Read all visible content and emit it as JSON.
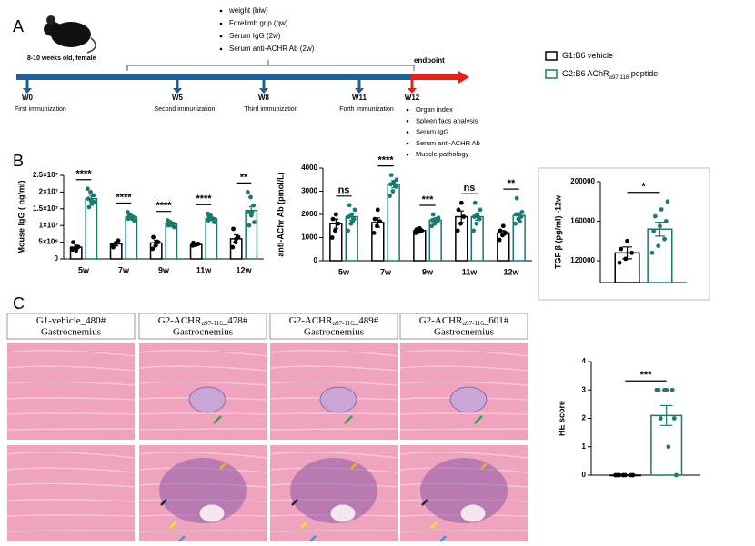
{
  "panel_labels": [
    "A",
    "B",
    "C"
  ],
  "timeline": {
    "mouse_caption": "8-10 weeks old, female",
    "measurements": [
      "weight (biw)",
      "Forelimb grip (qw)",
      "Serum IgG (2w)",
      "Serum anti-ACHR Ab (2w)"
    ],
    "endpoint": "endpoint",
    "timepoints": [
      {
        "label": "W0",
        "event": "First immunization"
      },
      {
        "label": "W5",
        "event": "Second immunization"
      },
      {
        "label": "W8",
        "event": "Third immunization"
      },
      {
        "label": "W11",
        "event": "Forth immunization"
      },
      {
        "label": "W12"
      }
    ],
    "endpoint_items": [
      "Organ index",
      "Spleen facs analysis",
      "Serum IgG",
      "Serum anti-ACHR Ab",
      "Muscle pathology"
    ]
  },
  "legend": [
    {
      "label": "G1:B6 vehicle",
      "color": "#000000"
    },
    {
      "label": "G2:B6 AChR",
      "sub": "α97-116",
      "suffix": " peptide",
      "color": "#1b7a6c"
    }
  ],
  "chart_data": [
    {
      "type": "bar",
      "ylabel": "Mouse IgG ( ng/ml)",
      "categories": [
        "5w",
        "7w",
        "9w",
        "11w",
        "12w"
      ],
      "ylim": [
        0,
        25000000
      ],
      "yticks": [
        0,
        {
          "value": 5000000,
          "label": "5×10⁶"
        },
        {
          "value": 10000000,
          "label": "1×10⁷"
        },
        {
          "value": 15000000,
          "label": "1.5×10⁷"
        },
        {
          "value": 20000000,
          "label": "2×10⁷"
        },
        {
          "value": 25000000,
          "label": "2.5×10⁷"
        }
      ],
      "significance": [
        "****",
        "****",
        "****",
        "****",
        "**"
      ],
      "series": [
        {
          "color": "#000000",
          "values": [
            3500000,
            4500000,
            4800000,
            4300000,
            6000000
          ],
          "errors": [
            600000,
            600000,
            800000,
            300000,
            1200000
          ],
          "points": [
            [
              2800000,
              3200000,
              3600000,
              5000000,
              2500000
            ],
            [
              4000000,
              4500000,
              5500000,
              3500000,
              4800000
            ],
            [
              3000000,
              4000000,
              5000000,
              6500000,
              5000000
            ],
            [
              4000000,
              4200000,
              4500000,
              4800000,
              4300000
            ],
            [
              3500000,
              5000000,
              6500000,
              9000000,
              6000000
            ]
          ]
        },
        {
          "color": "#1b7a6c",
          "values": [
            18000000,
            12500000,
            10500000,
            12000000,
            14500000
          ],
          "errors": [
            1000000,
            500000,
            400000,
            500000,
            1200000
          ],
          "points": [
            [
              21000000,
              20000000,
              19000000,
              18000000,
              17500000,
              17000000,
              15500000,
              16500000
            ],
            [
              14000000,
              13000000,
              12500000,
              12000000,
              12500000,
              11500000,
              13000000,
              12000000
            ],
            [
              11500000,
              11000000,
              10500000,
              10000000,
              10500000,
              9500000,
              11000000,
              10000000
            ],
            [
              13500000,
              13000000,
              12000000,
              11500000,
              12000000,
              11000000,
              12500000,
              12000000
            ],
            [
              20000000,
              18500000,
              16000000,
              14000000,
              13000000,
              11000000,
              10000000,
              14000000
            ]
          ]
        }
      ]
    },
    {
      "type": "bar",
      "ylabel": "anti-AChr Ab (pmol/L)",
      "categories": [
        "5w",
        "7w",
        "9w",
        "11w",
        "12w"
      ],
      "ylim": [
        0,
        4000
      ],
      "yticks": [
        0,
        1000,
        2000,
        3000,
        4000
      ],
      "significance": [
        "ns",
        "****",
        "***",
        "ns",
        "**"
      ],
      "series": [
        {
          "color": "#000000",
          "values": [
            1600,
            1650,
            1300,
            1900,
            1200
          ],
          "errors": [
            200,
            200,
            100,
            250,
            100
          ],
          "points": [
            [
              1000,
              1300,
              1600,
              1800,
              2000
            ],
            [
              1200,
              1500,
              1700,
              1800,
              2200
            ],
            [
              1200,
              1250,
              1300,
              1350,
              1400
            ],
            [
              1300,
              1600,
              1900,
              2200,
              2500
            ],
            [
              900,
              1100,
              1200,
              1300,
              1500
            ]
          ]
        },
        {
          "color": "#1b7a6c",
          "values": [
            1900,
            3300,
            1750,
            1900,
            1950
          ],
          "errors": [
            150,
            150,
            80,
            150,
            120
          ],
          "points": [
            [
              1300,
              1600,
              1800,
              1900,
              2000,
              2200,
              2400,
              1700
            ],
            [
              2800,
              3000,
              3200,
              3300,
              3400,
              3500,
              3700,
              3300
            ],
            [
              1500,
              1600,
              1700,
              1750,
              1800,
              1850,
              2000,
              1750
            ],
            [
              1300,
              1600,
              1800,
              1900,
              2000,
              2200,
              2500,
              1900
            ],
            [
              1600,
              1800,
              1900,
              2000,
              2000,
              2100,
              2700,
              1700
            ]
          ]
        }
      ]
    },
    {
      "type": "bar",
      "ylabel": "TGF β (pg/ml) -12w",
      "ylim": [
        98000,
        200000
      ],
      "yticks": [
        120000,
        160000,
        200000
      ],
      "significance": [
        "*"
      ],
      "series": [
        {
          "color": "#000000",
          "values": [
            128000
          ],
          "errors": [
            6000
          ],
          "points": [
            [
              118000,
              122000,
              128000,
              132000,
              140000
            ]
          ]
        },
        {
          "color": "#1b7a6c",
          "values": [
            152000
          ],
          "errors": [
            7000
          ],
          "points": [
            [
              128000,
              135000,
              142000,
              150000,
              155000,
              160000,
              165000,
              172000,
              180000
            ]
          ]
        }
      ]
    },
    {
      "type": "bar",
      "ylabel": "HE score",
      "ylim": [
        0,
        4
      ],
      "yticks": [
        0,
        1,
        2,
        3,
        4
      ],
      "significance": [
        "***"
      ],
      "series": [
        {
          "color": "#000000",
          "values": [
            0
          ],
          "errors": [
            0
          ],
          "points": [
            [
              0,
              0,
              0,
              0,
              0,
              0,
              0
            ]
          ]
        },
        {
          "color": "#1b7a6c",
          "values": [
            2.1
          ],
          "errors": [
            0.35
          ],
          "points": [
            [
              3,
              3,
              3,
              3,
              3,
              2,
              2,
              1,
              0
            ]
          ]
        }
      ]
    }
  ],
  "histology": [
    {
      "label": "G1-vehicle_480#",
      "tissue": "Gastrocnemius"
    },
    {
      "label": "G2-ACHR",
      "sub": "α97-116",
      "suffix": "_478#",
      "tissue": "Gastrocnemius"
    },
    {
      "label": "G2-ACHR",
      "sub": "α97-116",
      "suffix": "_489#",
      "tissue": "Gastrocnemius"
    },
    {
      "label": "G2-ACHR",
      "sub": "α97-116",
      "suffix": "_601#",
      "tissue": "Gastrocnemius"
    }
  ]
}
